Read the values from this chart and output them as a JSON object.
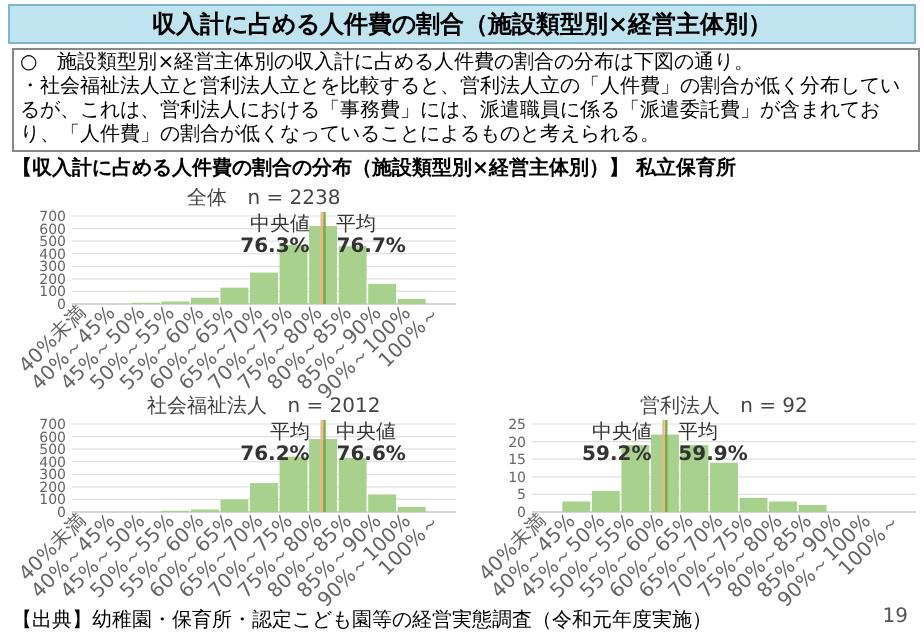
{
  "chart_data": [
    {
      "type": "other",
      "title": "収入計に占める人件費の割合（施設類型別×経営主体別）",
      "annotations": [
        "○　施設類型別×経営主体別の収入計に占める人件費の割合の分布は下図の通り。",
        "・社会福祉法人立と営利法人立とを比較すると、営利法人立の「人件費」の割合が低く分布しているが、これは、営利法人における「事務費」には、派遣職員に係る「派遣委託費」が含まれており、「人件費」の割合が低くなっていることによるものと考えられる。",
        "【収入計に占める人件費の割合の分布（施設類型別×経営主体別）】 私立保育所",
        "【出典】幼稚園・保育所・認定こども園等の経営実態調査（令和元年度実施）",
        "19"
      ]
    },
    {
      "type": "bar",
      "title": "全体　n = 2238",
      "categories": [
        "40%未満",
        "40%～45%",
        "45%～50%",
        "50%～55%",
        "55%～60%",
        "60%～65%",
        "65%～70%",
        "70%～75%",
        "75%～80%",
        "80%～85%",
        "85%～90%",
        "90%～100%",
        "100%～"
      ],
      "values": [
        0,
        0,
        10,
        20,
        50,
        130,
        250,
        470,
        620,
        460,
        160,
        40,
        0
      ],
      "color": "#a9d18e",
      "ylim": [
        0,
        700
      ],
      "yticks": [
        0,
        100,
        200,
        300,
        400,
        500,
        600,
        700
      ],
      "grid": "y",
      "ref_lines": [
        {
          "axis": "x",
          "value": "75%～80%",
          "label": "中央値 76.3%",
          "color": "#f4b183"
        },
        {
          "axis": "x",
          "value": "75%～80%",
          "label": "平均 76.7%",
          "color": "#70ad47"
        }
      ]
    },
    {
      "type": "bar",
      "title": "社会福祉法人　n = 2012",
      "categories": [
        "40%未満",
        "40%～45%",
        "45%～50%",
        "50%～55%",
        "55%～60%",
        "60%～65%",
        "65%～70%",
        "70%～75%",
        "75%～80%",
        "80%～85%",
        "85%～90%",
        "90%～100%",
        "100%～"
      ],
      "values": [
        0,
        0,
        0,
        10,
        20,
        100,
        230,
        440,
        580,
        430,
        140,
        40,
        0
      ],
      "color": "#a9d18e",
      "ylim": [
        0,
        700
      ],
      "yticks": [
        0,
        100,
        200,
        300,
        400,
        500,
        600,
        700
      ],
      "grid": "y",
      "ref_lines": [
        {
          "axis": "x",
          "value": "75%～80%",
          "label": "平均 76.2%",
          "color": "#f4b183"
        },
        {
          "axis": "x",
          "value": "75%～80%",
          "label": "中央値 76.6%",
          "color": "#70ad47"
        }
      ]
    },
    {
      "type": "bar",
      "title": "営利法人　n = 92",
      "categories": [
        "40%未満",
        "40%～45%",
        "45%～50%",
        "50%～55%",
        "55%～60%",
        "60%～65%",
        "65%～70%",
        "70%～75%",
        "75%～80%",
        "80%～85%",
        "85%～90%",
        "90%～100%",
        "100%～"
      ],
      "values": [
        0,
        3,
        6,
        19,
        22,
        19,
        14,
        4,
        3,
        2,
        0,
        0,
        0
      ],
      "color": "#a9d18e",
      "ylim": [
        0,
        25
      ],
      "yticks": [
        0,
        5,
        10,
        15,
        20,
        25
      ],
      "grid": "y",
      "ref_lines": [
        {
          "axis": "x",
          "value": "55%～60%",
          "label": "中央値 59.2%",
          "color": "#f4b183"
        },
        {
          "axis": "x",
          "value": "55%～60%",
          "label": "平均 59.9%",
          "color": "#70ad47"
        }
      ]
    }
  ]
}
